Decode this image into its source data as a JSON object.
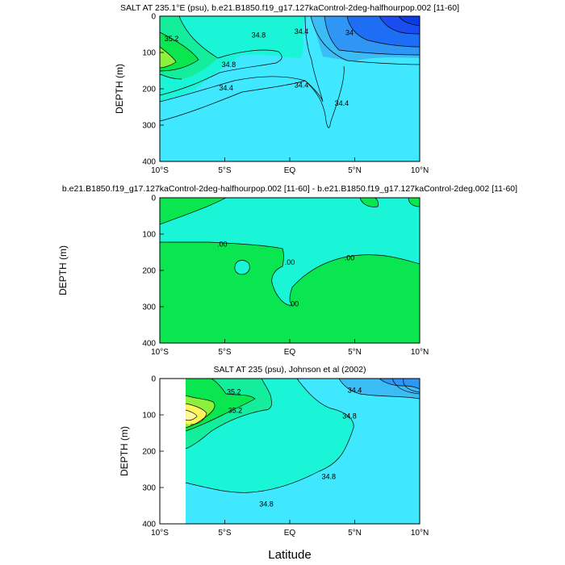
{
  "figure": {
    "xlabel": "Latitude"
  },
  "chart_data": [
    {
      "type": "contour",
      "title": "SALT AT 235.1°E (psu), b.e21.B1850.f19_g17.127kaControl-2deg-halfhourpop.002 [11-60]",
      "ylabel": "DEPTH (m)",
      "xlim": [
        -10,
        10
      ],
      "ylim": [
        400,
        0
      ],
      "x_ticks": [
        "10°S",
        "5°S",
        "EQ",
        "5°N",
        "10°N"
      ],
      "y_ticks": [
        "0",
        "100",
        "200",
        "300",
        "400"
      ],
      "contour_labels": [
        {
          "text": "35.2",
          "lat": -9.1,
          "depth": 62
        },
        {
          "text": "34.8",
          "lat": -2.4,
          "depth": 52
        },
        {
          "text": "34.8",
          "lat": -4.7,
          "depth": 133
        },
        {
          "text": "34.4",
          "lat": -4.9,
          "depth": 198
        },
        {
          "text": "34.4",
          "lat": 0.9,
          "depth": 42
        },
        {
          "text": "34.4",
          "lat": 0.9,
          "depth": 190
        },
        {
          "text": "34",
          "lat": 4.6,
          "depth": 45
        },
        {
          "text": "34.4",
          "lat": 4.0,
          "depth": 240
        }
      ]
    },
    {
      "type": "contour",
      "title": "b.e21.B1850.f19_g17.127kaControl-2deg-halfhourpop.002 [11-60] - b.e21.B1850.f19_g17.127kaControl-2deg.002 [11-60]",
      "ylabel": "DEPTH (m)",
      "xlim": [
        -10,
        10
      ],
      "ylim": [
        400,
        0
      ],
      "x_ticks": [
        "10°S",
        "5°S",
        "EQ",
        "5°N",
        "10°N"
      ],
      "y_ticks": [
        "0",
        "100",
        "200",
        "300",
        "400"
      ],
      "contour_labels": [
        {
          "text": ".00",
          "lat": -5.2,
          "depth": 128
        },
        {
          "text": ".00",
          "lat": 0.0,
          "depth": 178
        },
        {
          "text": ".00",
          "lat": 4.6,
          "depth": 165
        },
        {
          "text": ".00",
          "lat": 0.3,
          "depth": 292
        }
      ]
    },
    {
      "type": "contour",
      "title": "SALT AT 235 (psu), Johnson et al (2002)",
      "ylabel": "DEPTH (m)",
      "xlim": [
        -10,
        10
      ],
      "ylim": [
        400,
        0
      ],
      "x_ticks": [
        "10°S",
        "5°S",
        "EQ",
        "5°N",
        "10°N"
      ],
      "y_ticks": [
        "0",
        "100",
        "200",
        "300",
        "400"
      ],
      "contour_labels": [
        {
          "text": "35.2",
          "lat": -4.3,
          "depth": 37
        },
        {
          "text": "35.2",
          "lat": -4.2,
          "depth": 88
        },
        {
          "text": "34.4",
          "lat": 5.0,
          "depth": 32
        },
        {
          "text": "34.8",
          "lat": 4.6,
          "depth": 103
        },
        {
          "text": "34.8",
          "lat": 3.0,
          "depth": 270
        },
        {
          "text": "34.8",
          "lat": -1.8,
          "depth": 345
        }
      ]
    }
  ],
  "colors": {
    "deepblue": "#0a3ce6",
    "blue1": "#1e6ef5",
    "blue2": "#2f96f6",
    "blue3": "#3cbcf4",
    "cyan": "#3fe8ff",
    "aqua": "#19f5d6",
    "seagreen": "#14ee9c",
    "green": "#0ae650",
    "lime": "#8cf03c",
    "yellow": "#fff55a",
    "paleyellow": "#fff7a0"
  }
}
